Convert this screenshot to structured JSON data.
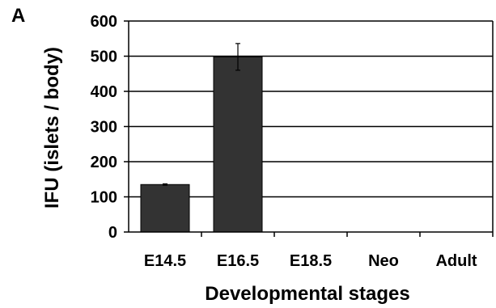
{
  "panel_label": "A",
  "colors": {
    "bar": "#333333",
    "axis": "#000000",
    "grid": "#000000",
    "background": "#ffffff"
  },
  "chart_data": {
    "type": "bar",
    "title": "",
    "xlabel": "Developmental stages",
    "ylabel": "IFU (islets / body)",
    "categories": [
      "E14.5",
      "E16.5",
      "E18.5",
      "Neo",
      "Adult"
    ],
    "values": [
      135,
      498,
      0,
      0,
      0
    ],
    "error": [
      2,
      38,
      0,
      0,
      0
    ],
    "ylim": [
      0,
      600
    ],
    "yticks": [
      0,
      100,
      200,
      300,
      400,
      500,
      600
    ],
    "grid": true,
    "legend": "none"
  }
}
